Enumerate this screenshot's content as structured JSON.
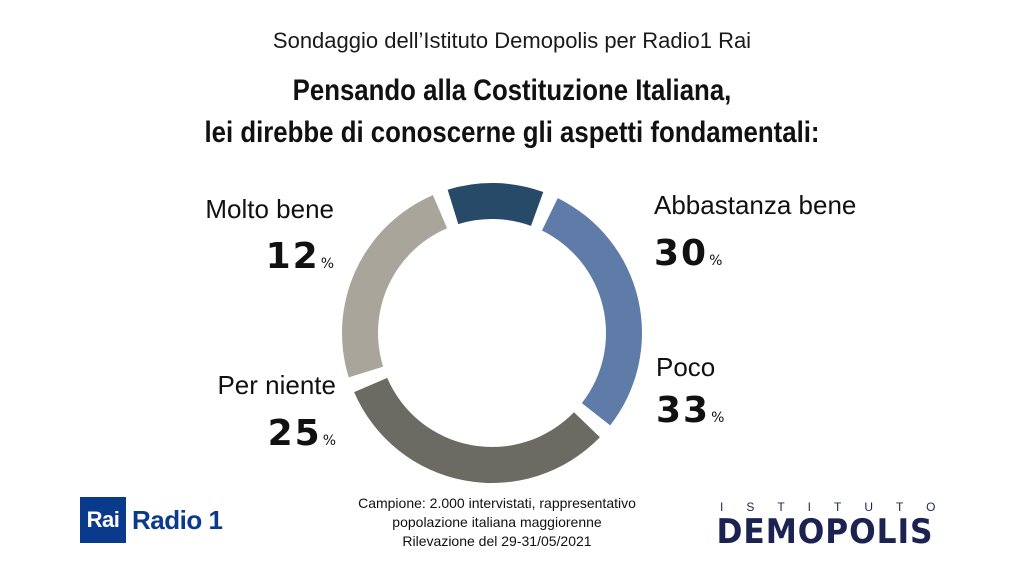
{
  "header": {
    "subtitle": "Sondaggio dell’Istituto Demopolis per Radio1 Rai",
    "title_line1": "Pensando alla Costituzione Italiana,",
    "title_line2": "lei direbbe di conoscerne gli aspetti fondamentali:"
  },
  "chart_data": {
    "type": "pie",
    "donut": true,
    "unit": "%",
    "categories": [
      "Abbastanza bene",
      "Poco",
      "Per niente",
      "Molto bene"
    ],
    "values": [
      30,
      33,
      25,
      12
    ],
    "colors": [
      "#5f7ca8",
      "#6b6a63",
      "#a9a59b",
      "#284a69"
    ]
  },
  "labels": {
    "molto_bene": {
      "name": "Molto bene",
      "value": "12",
      "unit": "%"
    },
    "abbastanza_bene": {
      "name": "Abbastanza bene",
      "value": "30",
      "unit": "%"
    },
    "poco": {
      "name": "Poco",
      "value": "33",
      "unit": "%"
    },
    "per_niente": {
      "name": "Per niente",
      "value": "25",
      "unit": "%"
    }
  },
  "footnote": {
    "line1": "Campione: 2.000 intervistati, rappresentativo",
    "line2": "popolazione italiana maggiorenne",
    "line3": "Rilevazione del 29-31/05/2021"
  },
  "logos": {
    "rai": "Rai",
    "radio": "Radio 1",
    "istituto": "ISTITUTO",
    "demopolis": "DEMOPOLIS"
  }
}
